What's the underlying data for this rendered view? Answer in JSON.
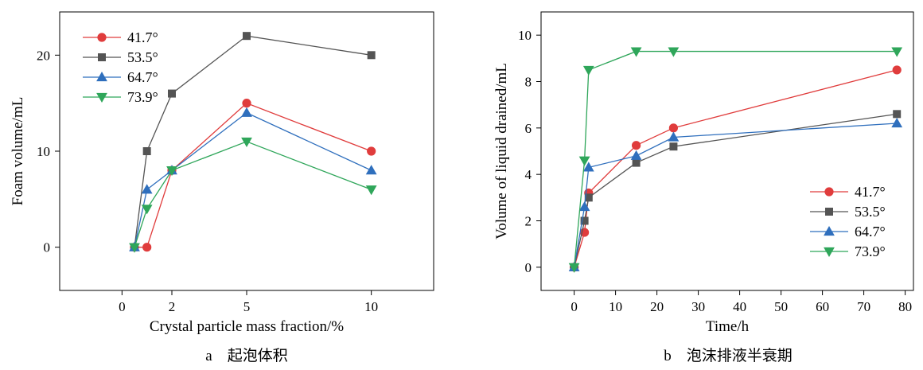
{
  "chart_data": [
    {
      "type": "line",
      "caption": "a　起泡体积",
      "xlabel": "Crystal particle mass fraction/%",
      "ylabel": "Foam volume/mL",
      "xlim": [
        -2.5,
        12.5
      ],
      "ylim": [
        -4.5,
        24.5
      ],
      "xticks": [
        0,
        2,
        5,
        10
      ],
      "yticks": [
        0,
        10,
        20
      ],
      "legend_position": "top-left",
      "grid": false,
      "series": [
        {
          "name": "41.7°",
          "color": "#e03c3c",
          "marker": "circle",
          "x": [
            0.5,
            1,
            2,
            5,
            10
          ],
          "y": [
            0,
            0,
            8,
            15,
            10
          ]
        },
        {
          "name": "53.5°",
          "color": "#545454",
          "marker": "square",
          "x": [
            0.5,
            1,
            2,
            5,
            10
          ],
          "y": [
            0,
            10,
            16,
            22,
            20
          ]
        },
        {
          "name": "64.7°",
          "color": "#2f6fbd",
          "marker": "triangle-up",
          "x": [
            0.5,
            1,
            2,
            5,
            10
          ],
          "y": [
            0,
            6,
            8,
            14,
            8
          ]
        },
        {
          "name": "73.9°",
          "color": "#2fa65a",
          "marker": "triangle-down",
          "x": [
            0.5,
            1,
            2,
            5,
            10
          ],
          "y": [
            0,
            4,
            8,
            11,
            6
          ]
        }
      ]
    },
    {
      "type": "line",
      "caption": "b　泡沫排液半衰期",
      "xlabel": "Time/h",
      "ylabel": "Volume of liquid drained/mL",
      "xlim": [
        -8,
        82
      ],
      "ylim": [
        -1,
        11
      ],
      "xticks": [
        0,
        10,
        20,
        30,
        40,
        50,
        60,
        70,
        80
      ],
      "yticks": [
        0,
        2,
        4,
        6,
        8,
        10
      ],
      "legend_position": "bottom-right",
      "grid": false,
      "series": [
        {
          "name": "41.7°",
          "color": "#e03c3c",
          "marker": "circle",
          "x": [
            0,
            2.5,
            3.5,
            15,
            24,
            78
          ],
          "y": [
            0,
            1.5,
            3.2,
            5.25,
            6.0,
            8.5
          ]
        },
        {
          "name": "53.5°",
          "color": "#545454",
          "marker": "square",
          "x": [
            0,
            2.5,
            3.5,
            15,
            24,
            78
          ],
          "y": [
            0,
            2.0,
            3.0,
            4.5,
            5.2,
            6.6
          ]
        },
        {
          "name": "64.7°",
          "color": "#2f6fbd",
          "marker": "triangle-up",
          "x": [
            0,
            2.5,
            3.5,
            15,
            24,
            78
          ],
          "y": [
            0,
            2.6,
            4.3,
            4.8,
            5.6,
            6.2
          ]
        },
        {
          "name": "73.9°",
          "color": "#2fa65a",
          "marker": "triangle-down",
          "x": [
            0,
            2.5,
            3.5,
            15,
            24,
            78
          ],
          "y": [
            0,
            4.6,
            8.5,
            9.3,
            9.3,
            9.3
          ]
        }
      ]
    }
  ]
}
